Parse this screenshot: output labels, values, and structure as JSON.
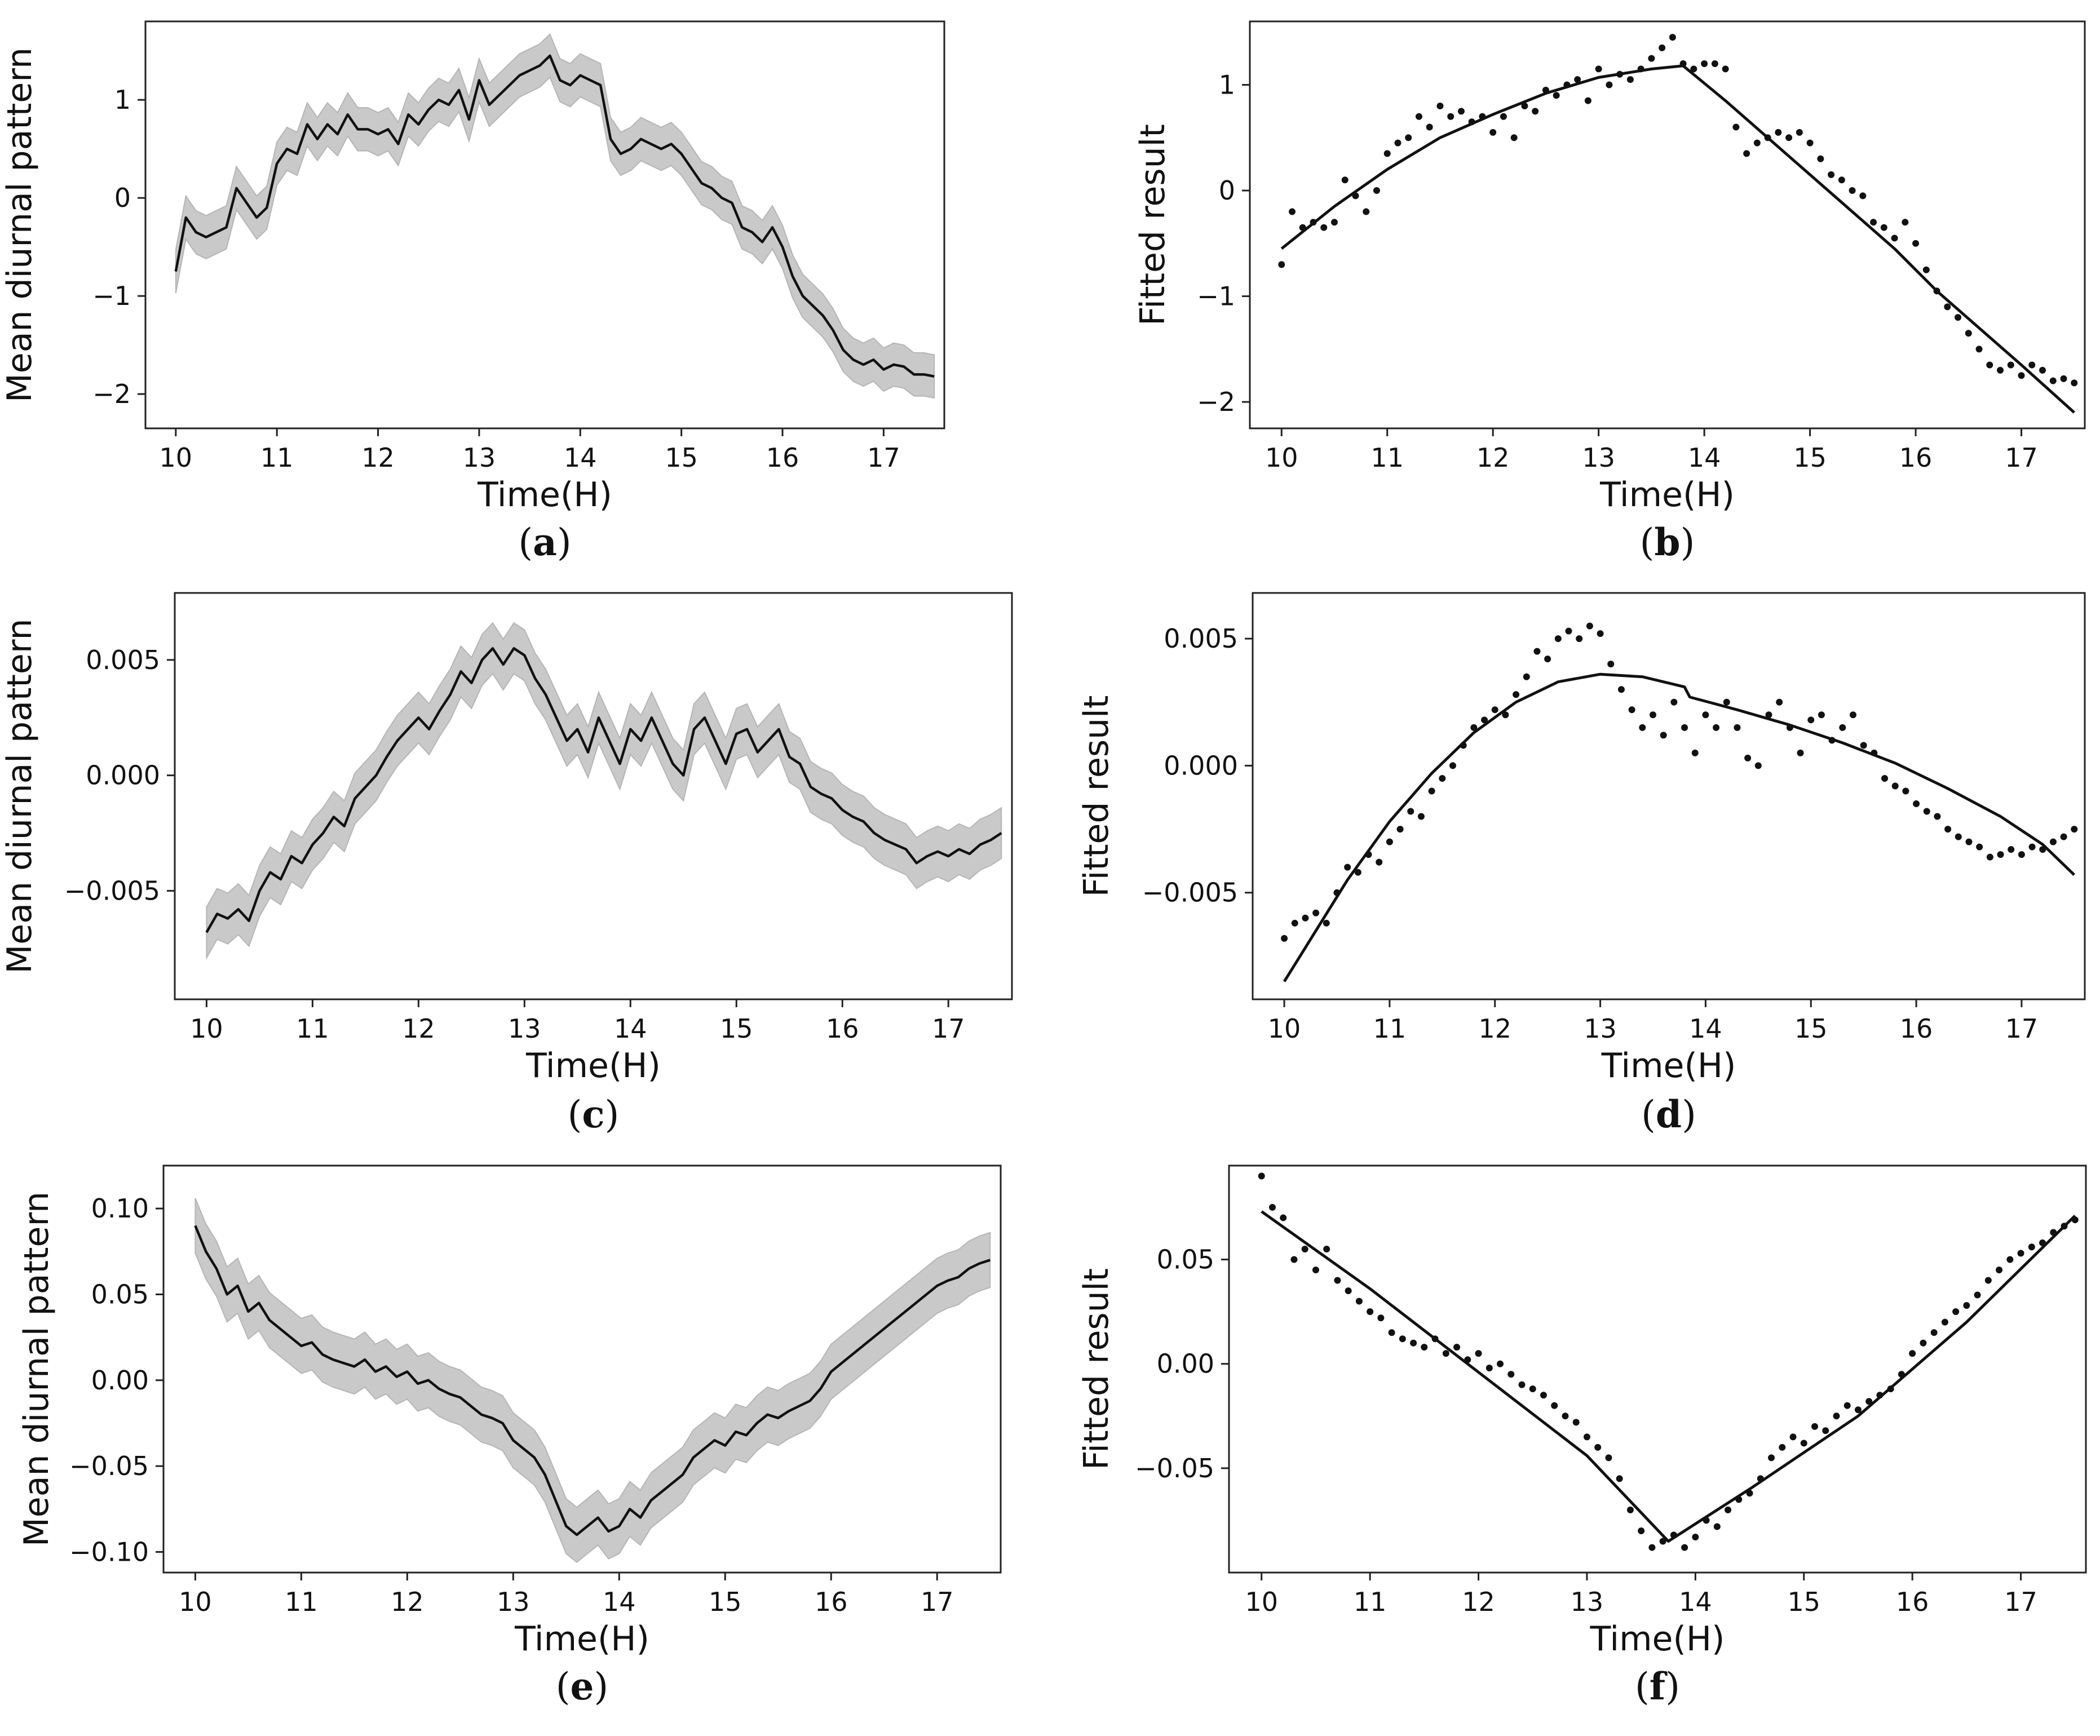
{
  "figure": {
    "panel_letters": [
      "a",
      "b",
      "c",
      "d",
      "e",
      "f"
    ]
  },
  "chart_data": [
    {
      "id": "a",
      "panel_label": "(a)",
      "type": "line",
      "band": true,
      "xlabel": "Time(H)",
      "ylabel": "Mean diurnal pattern",
      "xlim": [
        9.7,
        17.6
      ],
      "ylim": [
        -2.35,
        1.8
      ],
      "xticks": [
        10,
        11,
        12,
        13,
        14,
        15,
        16,
        17
      ],
      "xtick_labels": [
        "10",
        "11",
        "12",
        "13",
        "14",
        "15",
        "16",
        "17"
      ],
      "yticks": [
        -2,
        -1,
        0,
        1
      ],
      "ytick_labels": [
        "−2",
        "−1",
        "0",
        "1"
      ],
      "x": [
        10.0,
        10.1,
        10.2,
        10.3,
        10.4,
        10.5,
        10.6,
        10.7,
        10.8,
        10.9,
        11.0,
        11.1,
        11.2,
        11.3,
        11.4,
        11.5,
        11.6,
        11.7,
        11.8,
        11.9,
        12.0,
        12.1,
        12.2,
        12.3,
        12.4,
        12.5,
        12.6,
        12.7,
        12.8,
        12.9,
        13.0,
        13.1,
        13.2,
        13.3,
        13.4,
        13.5,
        13.6,
        13.7,
        13.8,
        13.9,
        14.0,
        14.1,
        14.2,
        14.3,
        14.4,
        14.5,
        14.6,
        14.7,
        14.8,
        14.9,
        15.0,
        15.1,
        15.2,
        15.3,
        15.4,
        15.5,
        15.6,
        15.7,
        15.8,
        15.9,
        16.0,
        16.1,
        16.2,
        16.3,
        16.4,
        16.5,
        16.6,
        16.7,
        16.8,
        16.9,
        17.0,
        17.1,
        17.2,
        17.3,
        17.4,
        17.5
      ],
      "y": [
        -0.75,
        -0.2,
        -0.35,
        -0.4,
        -0.35,
        -0.3,
        0.1,
        -0.05,
        -0.2,
        -0.1,
        0.35,
        0.5,
        0.45,
        0.75,
        0.6,
        0.75,
        0.65,
        0.85,
        0.7,
        0.7,
        0.65,
        0.7,
        0.55,
        0.85,
        0.75,
        0.9,
        1.0,
        0.95,
        1.1,
        0.8,
        1.2,
        0.95,
        1.05,
        1.15,
        1.25,
        1.3,
        1.35,
        1.45,
        1.2,
        1.15,
        1.25,
        1.2,
        1.15,
        0.6,
        0.45,
        0.5,
        0.6,
        0.55,
        0.5,
        0.55,
        0.45,
        0.3,
        0.15,
        0.1,
        0.0,
        -0.05,
        -0.3,
        -0.35,
        -0.45,
        -0.3,
        -0.5,
        -0.8,
        -1.0,
        -1.1,
        -1.2,
        -1.35,
        -1.55,
        -1.65,
        -1.7,
        -1.65,
        -1.75,
        -1.7,
        -1.72,
        -1.8,
        -1.8,
        -1.82
      ],
      "band_halfwidth": 0.22
    },
    {
      "id": "b",
      "panel_label": "(b)",
      "type": "scatter",
      "xlabel": "Time(H)",
      "ylabel": "Fitted result",
      "xlim": [
        9.7,
        17.6
      ],
      "ylim": [
        -2.25,
        1.6
      ],
      "xticks": [
        10,
        11,
        12,
        13,
        14,
        15,
        16,
        17
      ],
      "xtick_labels": [
        "10",
        "11",
        "12",
        "13",
        "14",
        "15",
        "16",
        "17"
      ],
      "yticks": [
        -2,
        -1,
        0,
        1
      ],
      "ytick_labels": [
        "−2",
        "−1",
        "0",
        "1"
      ],
      "x": [
        10.0,
        10.1,
        10.2,
        10.3,
        10.4,
        10.5,
        10.6,
        10.7,
        10.8,
        10.9,
        11.0,
        11.1,
        11.2,
        11.3,
        11.4,
        11.5,
        11.6,
        11.7,
        11.8,
        11.9,
        12.0,
        12.1,
        12.2,
        12.3,
        12.4,
        12.5,
        12.6,
        12.7,
        12.8,
        12.9,
        13.0,
        13.1,
        13.2,
        13.3,
        13.4,
        13.5,
        13.6,
        13.7,
        13.8,
        13.9,
        14.0,
        14.1,
        14.2,
        14.3,
        14.4,
        14.5,
        14.6,
        14.7,
        14.8,
        14.9,
        15.0,
        15.1,
        15.2,
        15.3,
        15.4,
        15.5,
        15.6,
        15.7,
        15.8,
        15.9,
        16.0,
        16.1,
        16.2,
        16.3,
        16.4,
        16.5,
        16.6,
        16.7,
        16.8,
        16.9,
        17.0,
        17.1,
        17.2,
        17.3,
        17.4,
        17.5
      ],
      "y": [
        -0.7,
        -0.2,
        -0.35,
        -0.3,
        -0.35,
        -0.3,
        0.1,
        -0.05,
        -0.2,
        0.0,
        0.35,
        0.45,
        0.5,
        0.7,
        0.6,
        0.8,
        0.7,
        0.75,
        0.65,
        0.7,
        0.55,
        0.7,
        0.5,
        0.8,
        0.75,
        0.95,
        0.9,
        1.0,
        1.05,
        0.85,
        1.15,
        1.0,
        1.1,
        1.05,
        1.15,
        1.25,
        1.35,
        1.45,
        1.2,
        1.15,
        1.2,
        1.2,
        1.15,
        0.6,
        0.35,
        0.45,
        0.5,
        0.55,
        0.5,
        0.55,
        0.45,
        0.3,
        0.15,
        0.1,
        0.0,
        -0.05,
        -0.3,
        -0.35,
        -0.45,
        -0.3,
        -0.5,
        -0.75,
        -0.95,
        -1.1,
        -1.2,
        -1.35,
        -1.5,
        -1.65,
        -1.7,
        -1.65,
        -1.75,
        -1.65,
        -1.7,
        -1.8,
        -1.78,
        -1.82
      ],
      "fit": {
        "x": [
          10.0,
          10.5,
          11.0,
          11.5,
          12.0,
          12.5,
          13.0,
          13.5,
          13.8,
          14.2,
          14.6,
          15.0,
          15.4,
          15.8,
          16.2,
          16.6,
          17.0,
          17.5
        ],
        "y": [
          -0.55,
          -0.15,
          0.2,
          0.5,
          0.72,
          0.92,
          1.07,
          1.15,
          1.18,
          0.85,
          0.5,
          0.15,
          -0.2,
          -0.55,
          -0.95,
          -1.3,
          -1.65,
          -2.1
        ]
      }
    },
    {
      "id": "c",
      "panel_label": "(c)",
      "type": "line",
      "band": true,
      "xlabel": "Time(H)",
      "ylabel": "Mean diurnal pattern",
      "xlim": [
        9.7,
        17.6
      ],
      "ylim": [
        -0.0097,
        0.0079
      ],
      "xticks": [
        10,
        11,
        12,
        13,
        14,
        15,
        16,
        17
      ],
      "xtick_labels": [
        "10",
        "11",
        "12",
        "13",
        "14",
        "15",
        "16",
        "17"
      ],
      "yticks": [
        -0.005,
        0.0,
        0.005
      ],
      "ytick_labels": [
        "−0.005",
        "0.000",
        "0.005"
      ],
      "x": [
        10.0,
        10.1,
        10.2,
        10.3,
        10.4,
        10.5,
        10.6,
        10.7,
        10.8,
        10.9,
        11.0,
        11.1,
        11.2,
        11.3,
        11.4,
        11.5,
        11.6,
        11.7,
        11.8,
        11.9,
        12.0,
        12.1,
        12.2,
        12.3,
        12.4,
        12.5,
        12.6,
        12.7,
        12.8,
        12.9,
        13.0,
        13.1,
        13.2,
        13.3,
        13.4,
        13.5,
        13.6,
        13.7,
        13.8,
        13.9,
        14.0,
        14.1,
        14.2,
        14.3,
        14.4,
        14.5,
        14.6,
        14.7,
        14.8,
        14.9,
        15.0,
        15.1,
        15.2,
        15.3,
        15.4,
        15.5,
        15.6,
        15.7,
        15.8,
        15.9,
        16.0,
        16.1,
        16.2,
        16.3,
        16.4,
        16.5,
        16.6,
        16.7,
        16.8,
        16.9,
        17.0,
        17.1,
        17.2,
        17.3,
        17.4,
        17.5
      ],
      "y": [
        -0.0068,
        -0.006,
        -0.0062,
        -0.0058,
        -0.0063,
        -0.005,
        -0.0042,
        -0.0045,
        -0.0035,
        -0.0038,
        -0.003,
        -0.0025,
        -0.0018,
        -0.0022,
        -0.001,
        -0.0005,
        0.0,
        0.0008,
        0.0015,
        0.002,
        0.0025,
        0.002,
        0.0028,
        0.0035,
        0.0045,
        0.004,
        0.005,
        0.0055,
        0.0048,
        0.0055,
        0.0052,
        0.0042,
        0.0035,
        0.0025,
        0.0015,
        0.002,
        0.001,
        0.0025,
        0.0015,
        0.0005,
        0.002,
        0.0015,
        0.0025,
        0.0015,
        0.0005,
        0.0,
        0.002,
        0.0025,
        0.0015,
        0.0005,
        0.0018,
        0.002,
        0.001,
        0.0015,
        0.002,
        0.0008,
        0.0005,
        -0.0005,
        -0.0008,
        -0.001,
        -0.0015,
        -0.0018,
        -0.002,
        -0.0025,
        -0.0028,
        -0.003,
        -0.0032,
        -0.0038,
        -0.0035,
        -0.0033,
        -0.0035,
        -0.0032,
        -0.0034,
        -0.003,
        -0.0028,
        -0.0025
      ],
      "band_halfwidth": 0.0011
    },
    {
      "id": "d",
      "panel_label": "(d)",
      "type": "scatter",
      "xlabel": "Time(H)",
      "ylabel": "Fitted result",
      "xlim": [
        9.7,
        17.6
      ],
      "ylim": [
        -0.0092,
        0.0068
      ],
      "xticks": [
        10,
        11,
        12,
        13,
        14,
        15,
        16,
        17
      ],
      "xtick_labels": [
        "10",
        "11",
        "12",
        "13",
        "14",
        "15",
        "16",
        "17"
      ],
      "yticks": [
        -0.005,
        0.0,
        0.005
      ],
      "ytick_labels": [
        "−0.005",
        "0.000",
        "0.005"
      ],
      "x": [
        10.0,
        10.1,
        10.2,
        10.3,
        10.4,
        10.5,
        10.6,
        10.7,
        10.8,
        10.9,
        11.0,
        11.1,
        11.2,
        11.3,
        11.4,
        11.5,
        11.6,
        11.7,
        11.8,
        11.9,
        12.0,
        12.1,
        12.2,
        12.3,
        12.4,
        12.5,
        12.6,
        12.7,
        12.8,
        12.9,
        13.0,
        13.1,
        13.2,
        13.3,
        13.4,
        13.5,
        13.6,
        13.7,
        13.8,
        13.9,
        14.0,
        14.1,
        14.2,
        14.3,
        14.4,
        14.5,
        14.6,
        14.7,
        14.8,
        14.9,
        15.0,
        15.1,
        15.2,
        15.3,
        15.4,
        15.5,
        15.6,
        15.7,
        15.8,
        15.9,
        16.0,
        16.1,
        16.2,
        16.3,
        16.4,
        16.5,
        16.6,
        16.7,
        16.8,
        16.9,
        17.0,
        17.1,
        17.2,
        17.3,
        17.4,
        17.5
      ],
      "y": [
        -0.0068,
        -0.0062,
        -0.006,
        -0.0058,
        -0.0062,
        -0.005,
        -0.004,
        -0.0042,
        -0.0035,
        -0.0038,
        -0.003,
        -0.0025,
        -0.0018,
        -0.002,
        -0.001,
        -0.0005,
        0.0,
        0.0008,
        0.0015,
        0.0018,
        0.0022,
        0.002,
        0.0028,
        0.0035,
        0.0045,
        0.0042,
        0.005,
        0.0053,
        0.005,
        0.0055,
        0.0052,
        0.004,
        0.003,
        0.0022,
        0.0015,
        0.002,
        0.0012,
        0.0025,
        0.0015,
        0.0005,
        0.002,
        0.0015,
        0.0025,
        0.0015,
        0.0003,
        0.0,
        0.002,
        0.0025,
        0.0015,
        0.0005,
        0.0018,
        0.002,
        0.001,
        0.0015,
        0.002,
        0.0008,
        0.0005,
        -0.0005,
        -0.0008,
        -0.001,
        -0.0015,
        -0.0018,
        -0.002,
        -0.0025,
        -0.0028,
        -0.003,
        -0.0032,
        -0.0036,
        -0.0035,
        -0.0033,
        -0.0035,
        -0.0032,
        -0.0033,
        -0.003,
        -0.0028,
        -0.0025
      ],
      "fit": {
        "x": [
          10.0,
          10.3,
          10.6,
          11.0,
          11.4,
          11.8,
          12.2,
          12.6,
          13.0,
          13.4,
          13.8,
          13.85,
          14.3,
          14.8,
          15.3,
          15.8,
          16.3,
          16.8,
          17.2,
          17.5
        ],
        "y": [
          -0.0085,
          -0.0065,
          -0.0045,
          -0.0022,
          -0.0003,
          0.0013,
          0.0025,
          0.0033,
          0.0036,
          0.0035,
          0.0031,
          0.0027,
          0.0022,
          0.0016,
          0.0009,
          0.0001,
          -0.0009,
          -0.002,
          -0.0031,
          -0.0043
        ]
      }
    },
    {
      "id": "e",
      "panel_label": "(e)",
      "type": "line",
      "band": true,
      "xlabel": "Time(H)",
      "ylabel": "Mean diurnal pattern",
      "xlim": [
        9.7,
        17.6
      ],
      "ylim": [
        -0.112,
        0.125
      ],
      "xticks": [
        10,
        11,
        12,
        13,
        14,
        15,
        16,
        17
      ],
      "xtick_labels": [
        "10",
        "11",
        "12",
        "13",
        "14",
        "15",
        "16",
        "17"
      ],
      "yticks": [
        -0.1,
        -0.05,
        0.0,
        0.05,
        0.1
      ],
      "ytick_labels": [
        "−0.10",
        "−0.05",
        "0.00",
        "0.05",
        "0.10"
      ],
      "x": [
        10.0,
        10.1,
        10.2,
        10.3,
        10.4,
        10.5,
        10.6,
        10.7,
        10.8,
        10.9,
        11.0,
        11.1,
        11.2,
        11.3,
        11.4,
        11.5,
        11.6,
        11.7,
        11.8,
        11.9,
        12.0,
        12.1,
        12.2,
        12.3,
        12.4,
        12.5,
        12.6,
        12.7,
        12.8,
        12.9,
        13.0,
        13.1,
        13.2,
        13.3,
        13.4,
        13.5,
        13.6,
        13.7,
        13.8,
        13.9,
        14.0,
        14.1,
        14.2,
        14.3,
        14.4,
        14.5,
        14.6,
        14.7,
        14.8,
        14.9,
        15.0,
        15.1,
        15.2,
        15.3,
        15.4,
        15.5,
        15.6,
        15.7,
        15.8,
        15.9,
        16.0,
        16.1,
        16.2,
        16.3,
        16.4,
        16.5,
        16.6,
        16.7,
        16.8,
        16.9,
        17.0,
        17.1,
        17.2,
        17.3,
        17.4,
        17.5
      ],
      "y": [
        0.09,
        0.075,
        0.065,
        0.05,
        0.055,
        0.04,
        0.045,
        0.035,
        0.03,
        0.025,
        0.02,
        0.022,
        0.015,
        0.012,
        0.01,
        0.008,
        0.012,
        0.005,
        0.008,
        0.002,
        0.005,
        -0.002,
        0.0,
        -0.005,
        -0.008,
        -0.01,
        -0.015,
        -0.02,
        -0.022,
        -0.025,
        -0.035,
        -0.04,
        -0.045,
        -0.055,
        -0.07,
        -0.085,
        -0.09,
        -0.085,
        -0.08,
        -0.088,
        -0.085,
        -0.075,
        -0.08,
        -0.07,
        -0.065,
        -0.06,
        -0.055,
        -0.045,
        -0.04,
        -0.035,
        -0.038,
        -0.03,
        -0.032,
        -0.025,
        -0.02,
        -0.022,
        -0.018,
        -0.015,
        -0.012,
        -0.005,
        0.005,
        0.01,
        0.015,
        0.02,
        0.025,
        0.03,
        0.035,
        0.04,
        0.045,
        0.05,
        0.055,
        0.058,
        0.06,
        0.065,
        0.068,
        0.07
      ],
      "band_halfwidth": 0.016
    },
    {
      "id": "f",
      "panel_label": "(f)",
      "type": "scatter",
      "xlabel": "Time(H)",
      "ylabel": "Fitted result",
      "xlim": [
        9.7,
        17.6
      ],
      "ylim": [
        -0.1,
        0.095
      ],
      "xticks": [
        10,
        11,
        12,
        13,
        14,
        15,
        16,
        17
      ],
      "xtick_labels": [
        "10",
        "11",
        "12",
        "13",
        "14",
        "15",
        "16",
        "17"
      ],
      "yticks": [
        -0.05,
        0.0,
        0.05
      ],
      "ytick_labels": [
        "−0.05",
        "0.00",
        "0.05"
      ],
      "x": [
        10.0,
        10.1,
        10.2,
        10.3,
        10.4,
        10.5,
        10.6,
        10.7,
        10.8,
        10.9,
        11.0,
        11.1,
        11.2,
        11.3,
        11.4,
        11.5,
        11.6,
        11.7,
        11.8,
        11.9,
        12.0,
        12.1,
        12.2,
        12.3,
        12.4,
        12.5,
        12.6,
        12.7,
        12.8,
        12.9,
        13.0,
        13.1,
        13.2,
        13.3,
        13.4,
        13.5,
        13.6,
        13.7,
        13.8,
        13.9,
        14.0,
        14.1,
        14.2,
        14.3,
        14.4,
        14.5,
        14.6,
        14.7,
        14.8,
        14.9,
        15.0,
        15.1,
        15.2,
        15.3,
        15.4,
        15.5,
        15.6,
        15.7,
        15.8,
        15.9,
        16.0,
        16.1,
        16.2,
        16.3,
        16.4,
        16.5,
        16.6,
        16.7,
        16.8,
        16.9,
        17.0,
        17.1,
        17.2,
        17.3,
        17.4,
        17.5
      ],
      "y": [
        0.09,
        0.075,
        0.07,
        0.05,
        0.055,
        0.045,
        0.055,
        0.04,
        0.035,
        0.03,
        0.025,
        0.022,
        0.015,
        0.012,
        0.01,
        0.008,
        0.012,
        0.005,
        0.008,
        0.002,
        0.005,
        -0.002,
        0.0,
        -0.005,
        -0.01,
        -0.012,
        -0.015,
        -0.02,
        -0.025,
        -0.028,
        -0.035,
        -0.04,
        -0.045,
        -0.055,
        -0.07,
        -0.08,
        -0.088,
        -0.085,
        -0.082,
        -0.088,
        -0.083,
        -0.075,
        -0.078,
        -0.07,
        -0.065,
        -0.062,
        -0.055,
        -0.045,
        -0.04,
        -0.035,
        -0.038,
        -0.03,
        -0.032,
        -0.025,
        -0.02,
        -0.022,
        -0.018,
        -0.015,
        -0.012,
        -0.005,
        0.005,
        0.01,
        0.015,
        0.02,
        0.025,
        0.028,
        0.033,
        0.04,
        0.045,
        0.05,
        0.053,
        0.056,
        0.058,
        0.063,
        0.066,
        0.069
      ],
      "fit": {
        "x": [
          10.0,
          11.0,
          12.0,
          13.0,
          13.75,
          14.5,
          15.5,
          16.5,
          17.5
        ],
        "y": [
          0.073,
          0.036,
          -0.004,
          -0.044,
          -0.085,
          -0.06,
          -0.025,
          0.02,
          0.071
        ]
      }
    }
  ]
}
